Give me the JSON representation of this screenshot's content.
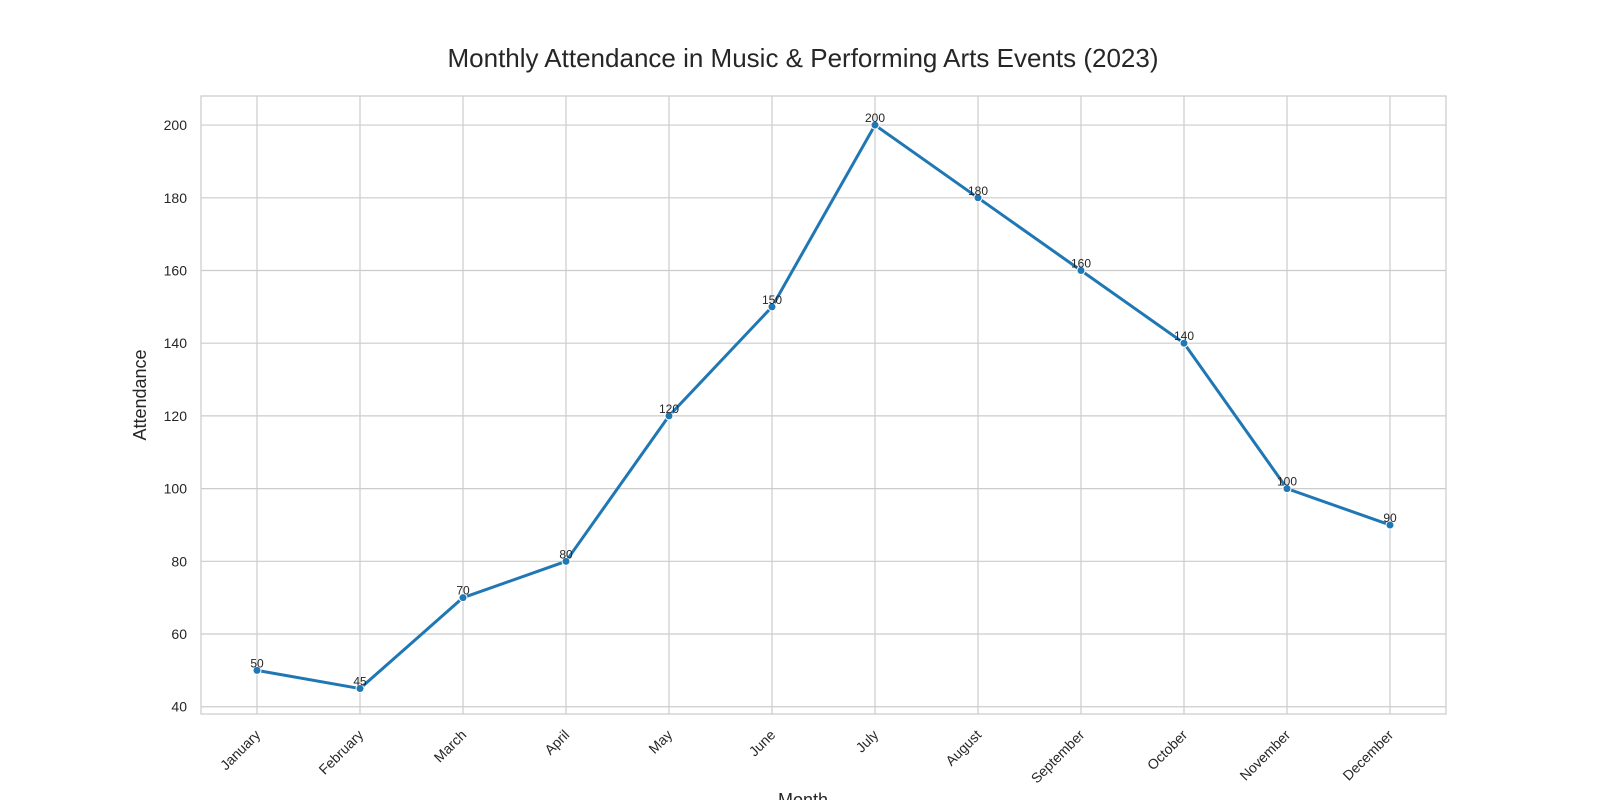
{
  "chart_data": {
    "type": "line",
    "title": "Monthly Attendance in Music & Performing Arts Events (2023)",
    "xlabel": "Month",
    "ylabel": "Attendance",
    "categories": [
      "January",
      "February",
      "March",
      "April",
      "May",
      "June",
      "July",
      "August",
      "September",
      "October",
      "November",
      "December"
    ],
    "series": [
      {
        "values": [
          50,
          45,
          70,
          80,
          120,
          150,
          200,
          180,
          160,
          140,
          100,
          90
        ],
        "color": "#1f77b4"
      }
    ],
    "ylim": [
      38,
      208
    ],
    "yticks": [
      40,
      60,
      80,
      100,
      120,
      140,
      160,
      180,
      200
    ],
    "data_labels": true,
    "grid": true,
    "x_tick_rotation": -45,
    "colors": {
      "grid": "#cccccc",
      "frame": "#cccccc",
      "text": "#262626"
    }
  }
}
